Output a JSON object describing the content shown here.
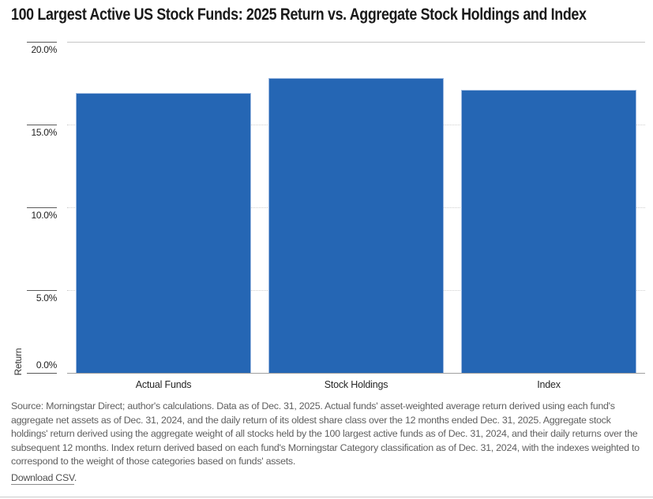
{
  "title": "100 Largest Active US Stock Funds: 2025 Return vs. Aggregate Stock Holdings and Index",
  "chart_data": {
    "type": "bar",
    "title": "100 Largest Active US Stock Funds: 2025 Return vs. Aggregate Stock Holdings and Index",
    "categories": [
      "Actual Funds",
      "Stock Holdings",
      "Index"
    ],
    "values": [
      16.9,
      17.8,
      17.1
    ],
    "value_unit": "%",
    "xlabel": "",
    "ylabel": "Return",
    "ylim": [
      0,
      20
    ],
    "yticks": [
      {
        "value": 20,
        "label": "20.0%"
      },
      {
        "value": 15,
        "label": "15.0%"
      },
      {
        "value": 10,
        "label": "10.0%"
      },
      {
        "value": 5,
        "label": "5.0%"
      },
      {
        "value": 0,
        "label": "0.0%"
      }
    ],
    "grid": "horizontal, dotted minor lines, solid top line",
    "legend_position": "none",
    "bar_color": "#2566b4"
  },
  "footer": {
    "source_note": "Source: Morningstar Direct; author's calculations. Data as of Dec. 31, 2025. Actual funds' asset-weighted average return derived using each fund's aggregate net assets as of Dec. 31, 2024, and the daily return of its oldest share class over the 12 months ended Dec. 31, 2025. Aggregate stock holdings' return derived using the aggregate weight of all stocks held by the 100 largest active funds as of Dec. 31, 2024, and their daily returns over the subsequent 12 months. Index return derived based on each fund's Morningstar Category classification as of Dec. 31, 2024, with the indexes weighted to correspond to the weight of those categories based on funds' assets.",
    "download_label": "Download CSV",
    "download_suffix": "."
  },
  "colors": {
    "bar": "#2566b4",
    "bar_border": "#9db9e0",
    "grid_solid": "#c6c6c6",
    "grid_dotted": "#cfcfcf",
    "axis_line": "#a0a0a0",
    "tick_rule": "#5a5a5a",
    "title_text": "#1a1a1a",
    "muted_text": "#5f5f5f"
  }
}
